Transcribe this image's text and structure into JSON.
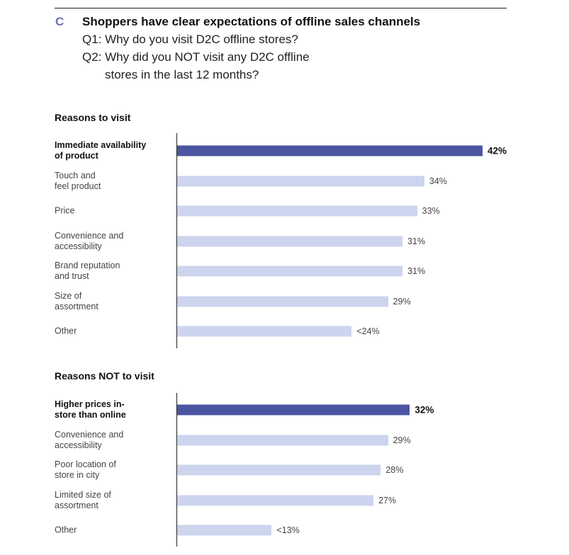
{
  "header": {
    "letter": "C",
    "title": "Shoppers have clear expectations of offline sales channels",
    "q1": "Q1: Why do you visit D2C offline stores?",
    "q2_line1": "Q2: Why did you NOT visit any D2C offline",
    "q2_line2": "stores in the last 12 months?"
  },
  "colors": {
    "highlight": "#4c55a0",
    "normal": "#ccd4ee"
  },
  "chart_data": [
    {
      "type": "bar",
      "orientation": "horizontal",
      "title": "Reasons to visit",
      "unit": "%",
      "xlim": [
        0,
        42
      ],
      "categories": [
        "Immediate availability of product",
        "Touch and feel product",
        "Price",
        "Convenience and accessibility",
        "Brand reputation and trust",
        "Size of assortment",
        "Other"
      ],
      "label_lines": [
        [
          "Immediate availability",
          "of product"
        ],
        [
          "Touch and",
          "feel product"
        ],
        [
          "Price"
        ],
        [
          "Convenience and",
          "accessibility"
        ],
        [
          "Brand reputation",
          "and trust"
        ],
        [
          "Size of",
          "assortment"
        ],
        [
          "Other"
        ]
      ],
      "values": [
        42,
        34,
        33,
        31,
        31,
        29,
        24
      ],
      "value_labels": [
        "42%",
        "34%",
        "33%",
        "31%",
        "31%",
        "29%",
        "<24%"
      ],
      "highlight_index": 0
    },
    {
      "type": "bar",
      "orientation": "horizontal",
      "title": "Reasons NOT to visit",
      "unit": "%",
      "xlim": [
        0,
        42
      ],
      "categories": [
        "Higher prices in-store than online",
        "Convenience and accessibility",
        "Poor location of store in city",
        "Limited size of assortment",
        "Other"
      ],
      "label_lines": [
        [
          "Higher prices in-",
          "store than online"
        ],
        [
          "Convenience and",
          "accessibility"
        ],
        [
          "Poor location of",
          "store in city"
        ],
        [
          "Limited size of",
          "assortment"
        ],
        [
          "Other"
        ]
      ],
      "values": [
        32,
        29,
        28,
        27,
        13
      ],
      "value_labels": [
        "32%",
        "29%",
        "28%",
        "27%",
        "<13%"
      ],
      "highlight_index": 0
    }
  ]
}
